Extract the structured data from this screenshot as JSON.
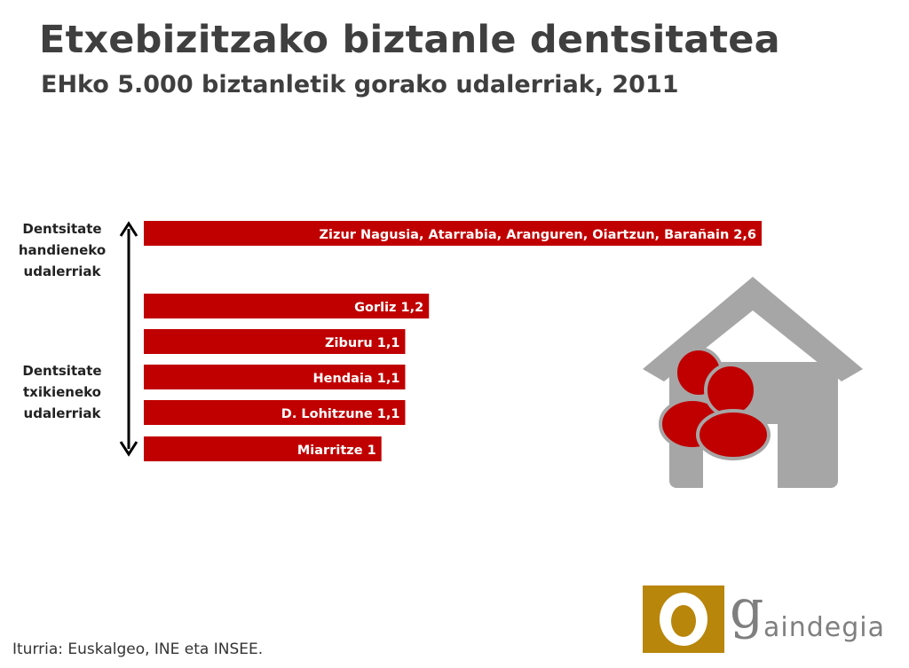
{
  "title": "Etxebizitzako biztanle dentsitatea",
  "subtitle": "EHko 5.000 biztanletik gorako udalerriak, 2011",
  "side_labels": {
    "top": [
      "Dentsitate",
      "handieneko",
      "udalerriak"
    ],
    "bottom": [
      "Dentsitate",
      "txikieneko",
      "udalerriak"
    ]
  },
  "source": "Iturria: Euskalgeo, INE eta INSEE.",
  "logo_text": "aindegia",
  "colors": {
    "bar": "#c00000",
    "house": "#a6a6a6",
    "people": "#c00000",
    "logo_gold": "#b8860b"
  },
  "chart_data": {
    "type": "bar",
    "orientation": "horizontal",
    "categories": [
      "Zizur Nagusia, Atarrabia, Aranguren, Oiartzun, Barañain 2,6",
      "Gorliz 1,2",
      "Ziburu 1,1",
      "Hendaia 1,1",
      "D. Lohitzune 1,1",
      "Miarritze 1"
    ],
    "values": [
      2.6,
      1.2,
      1.1,
      1.1,
      1.1,
      1.0
    ],
    "xlim": [
      0,
      2.6
    ],
    "grid": false,
    "legend": "none"
  }
}
